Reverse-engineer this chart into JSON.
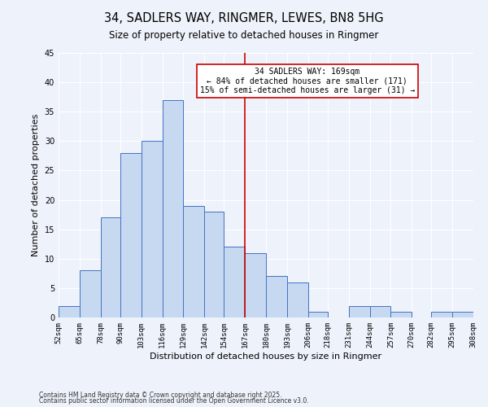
{
  "title": "34, SADLERS WAY, RINGMER, LEWES, BN8 5HG",
  "subtitle": "Size of property relative to detached houses in Ringmer",
  "xlabel": "Distribution of detached houses by size in Ringmer",
  "ylabel": "Number of detached properties",
  "bin_edges": [
    52,
    65,
    78,
    90,
    103,
    116,
    129,
    142,
    154,
    167,
    180,
    193,
    206,
    218,
    231,
    244,
    257,
    270,
    282,
    295,
    308
  ],
  "bar_heights": [
    2,
    8,
    17,
    28,
    30,
    37,
    19,
    18,
    12,
    11,
    7,
    6,
    1,
    0,
    2,
    2,
    1,
    0,
    1,
    1
  ],
  "bar_color": "#c6d9f1",
  "bar_edge_color": "#4472c4",
  "vline_x": 167,
  "vline_color": "#cc0000",
  "ylim": [
    0,
    45
  ],
  "annotation_text": "34 SADLERS WAY: 169sqm\n← 84% of detached houses are smaller (171)\n15% of semi-detached houses are larger (31) →",
  "annotation_box_edge_color": "#cc0000",
  "annotation_box_face_color": "#ffffff",
  "footnote1": "Contains HM Land Registry data © Crown copyright and database right 2025.",
  "footnote2": "Contains public sector information licensed under the Open Government Licence v3.0.",
  "background_color": "#eef2fb",
  "grid_color": "#ffffff",
  "title_fontsize": 10.5,
  "subtitle_fontsize": 8.5,
  "axis_label_fontsize": 8,
  "tick_fontsize": 6.5,
  "annotation_fontsize": 7,
  "footnote_fontsize": 5.5,
  "tick_labels": [
    "52sqm",
    "65sqm",
    "78sqm",
    "90sqm",
    "103sqm",
    "116sqm",
    "129sqm",
    "142sqm",
    "154sqm",
    "167sqm",
    "180sqm",
    "193sqm",
    "206sqm",
    "218sqm",
    "231sqm",
    "244sqm",
    "257sqm",
    "270sqm",
    "282sqm",
    "295sqm",
    "308sqm"
  ]
}
